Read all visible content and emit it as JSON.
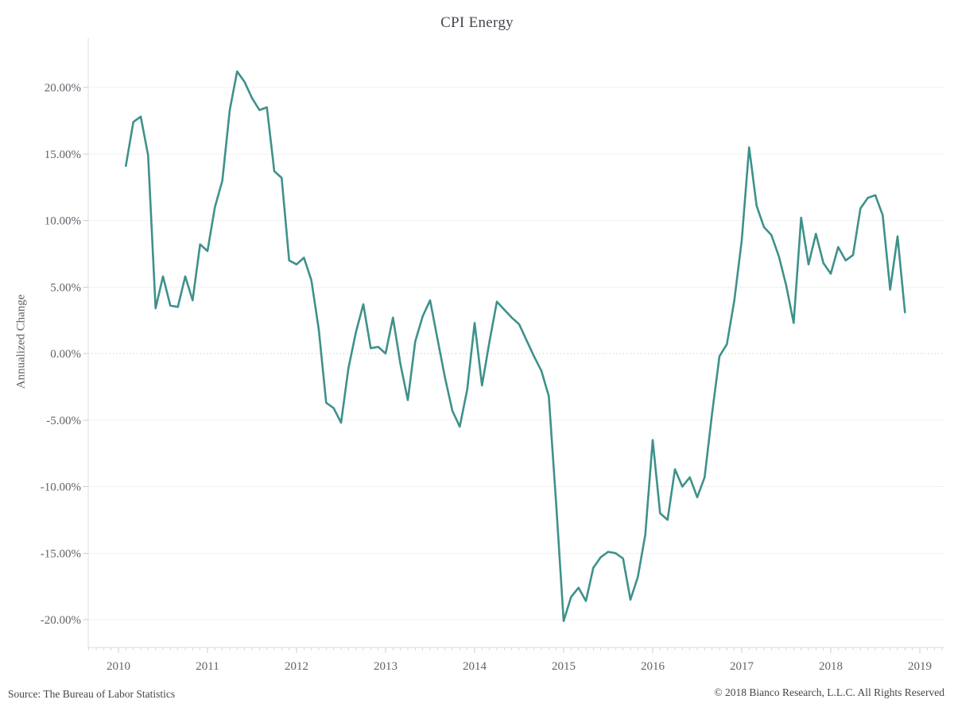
{
  "title": "CPI Energy",
  "footer": {
    "source": "Source: The Bureau of Labor Statistics",
    "copyright": "© 2018 Bianco Research, L.L.C. All Rights Reserved"
  },
  "chart_data": {
    "type": "line",
    "title": "CPI Energy",
    "xlabel": "",
    "ylabel": "Annualized Change",
    "ylim": [
      -22.5,
      23.5
    ],
    "grid": "horizontal, zero line dotted",
    "legend": "none",
    "colors": {
      "line": "#3E918B",
      "grid": "#f1f1ef",
      "zero_line": "#bdbdbd",
      "axis": "#dcdcdc",
      "tick": "#cccccc",
      "tick_text": "#62626b"
    },
    "y_ticks": [
      {
        "value": 20,
        "label": "20.00%"
      },
      {
        "value": 15,
        "label": "15.00%"
      },
      {
        "value": 10,
        "label": "10.00%"
      },
      {
        "value": 5,
        "label": "5.00%"
      },
      {
        "value": 0,
        "label": "0.00%"
      },
      {
        "value": -5,
        "label": "-5.00%"
      },
      {
        "value": -10,
        "label": "-10.00%"
      },
      {
        "value": -15,
        "label": "-15.00%"
      },
      {
        "value": -20,
        "label": "-20.00%"
      }
    ],
    "x_tick_labels": [
      "2010",
      "2011",
      "2012",
      "2013",
      "2014",
      "2015",
      "2016",
      "2017",
      "2018",
      "2019"
    ],
    "points": [
      [
        "2010-02",
        14.1
      ],
      [
        "2010-03",
        17.4
      ],
      [
        "2010-04",
        17.8
      ],
      [
        "2010-05",
        14.9
      ],
      [
        "2010-06",
        3.4
      ],
      [
        "2010-07",
        5.8
      ],
      [
        "2010-08",
        3.6
      ],
      [
        "2010-09",
        3.5
      ],
      [
        "2010-10",
        5.8
      ],
      [
        "2010-11",
        4.0
      ],
      [
        "2010-12",
        8.2
      ],
      [
        "2011-01",
        7.7
      ],
      [
        "2011-02",
        11.0
      ],
      [
        "2011-03",
        13.0
      ],
      [
        "2011-04",
        18.3
      ],
      [
        "2011-05",
        21.2
      ],
      [
        "2011-06",
        20.4
      ],
      [
        "2011-07",
        19.2
      ],
      [
        "2011-08",
        18.3
      ],
      [
        "2011-09",
        18.5
      ],
      [
        "2011-10",
        13.7
      ],
      [
        "2011-11",
        13.2
      ],
      [
        "2011-12",
        7.0
      ],
      [
        "2012-01",
        6.7
      ],
      [
        "2012-02",
        7.2
      ],
      [
        "2012-03",
        5.5
      ],
      [
        "2012-04",
        1.8
      ],
      [
        "2012-05",
        -3.7
      ],
      [
        "2012-06",
        -4.1
      ],
      [
        "2012-07",
        -5.2
      ],
      [
        "2012-08",
        -1.1
      ],
      [
        "2012-09",
        1.6
      ],
      [
        "2012-10",
        3.7
      ],
      [
        "2012-11",
        0.4
      ],
      [
        "2012-12",
        0.5
      ],
      [
        "2013-01",
        0.0
      ],
      [
        "2013-02",
        2.7
      ],
      [
        "2013-03",
        -0.8
      ],
      [
        "2013-04",
        -3.5
      ],
      [
        "2013-05",
        0.9
      ],
      [
        "2013-06",
        2.8
      ],
      [
        "2013-07",
        4.0
      ],
      [
        "2013-08",
        1.1
      ],
      [
        "2013-09",
        -1.8
      ],
      [
        "2013-10",
        -4.3
      ],
      [
        "2013-11",
        -5.5
      ],
      [
        "2013-12",
        -2.7
      ],
      [
        "2014-01",
        2.3
      ],
      [
        "2014-02",
        -2.4
      ],
      [
        "2014-03",
        0.9
      ],
      [
        "2014-04",
        3.9
      ],
      [
        "2014-05",
        3.3
      ],
      [
        "2014-06",
        2.7
      ],
      [
        "2014-07",
        2.2
      ],
      [
        "2014-08",
        1.0
      ],
      [
        "2014-09",
        -0.2
      ],
      [
        "2014-10",
        -1.3
      ],
      [
        "2014-11",
        -3.2
      ],
      [
        "2014-12",
        -11.4
      ],
      [
        "2015-01",
        -20.1
      ],
      [
        "2015-02",
        -18.3
      ],
      [
        "2015-03",
        -17.6
      ],
      [
        "2015-04",
        -18.6
      ],
      [
        "2015-05",
        -16.1
      ],
      [
        "2015-06",
        -15.3
      ],
      [
        "2015-07",
        -14.9
      ],
      [
        "2015-08",
        -15.0
      ],
      [
        "2015-09",
        -15.4
      ],
      [
        "2015-10",
        -18.5
      ],
      [
        "2015-11",
        -16.8
      ],
      [
        "2015-12",
        -13.6
      ],
      [
        "2016-01",
        -6.5
      ],
      [
        "2016-02",
        -12.0
      ],
      [
        "2016-03",
        -12.5
      ],
      [
        "2016-04",
        -8.7
      ],
      [
        "2016-05",
        -10.0
      ],
      [
        "2016-06",
        -9.3
      ],
      [
        "2016-07",
        -10.8
      ],
      [
        "2016-08",
        -9.3
      ],
      [
        "2016-09",
        -4.5
      ],
      [
        "2016-10",
        -0.2
      ],
      [
        "2016-11",
        0.7
      ],
      [
        "2016-12",
        4.0
      ],
      [
        "2017-01",
        8.5
      ],
      [
        "2017-02",
        15.5
      ],
      [
        "2017-03",
        11.1
      ],
      [
        "2017-04",
        9.5
      ],
      [
        "2017-05",
        8.9
      ],
      [
        "2017-06",
        7.3
      ],
      [
        "2017-07",
        5.1
      ],
      [
        "2017-08",
        2.3
      ],
      [
        "2017-09",
        10.2
      ],
      [
        "2017-10",
        6.7
      ],
      [
        "2017-11",
        9.0
      ],
      [
        "2017-12",
        6.8
      ],
      [
        "2018-01",
        6.0
      ],
      [
        "2018-02",
        8.0
      ],
      [
        "2018-03",
        7.0
      ],
      [
        "2018-04",
        7.4
      ],
      [
        "2018-05",
        10.9
      ],
      [
        "2018-06",
        11.7
      ],
      [
        "2018-07",
        11.9
      ],
      [
        "2018-08",
        10.4
      ],
      [
        "2018-09",
        4.8
      ],
      [
        "2018-10",
        8.8
      ],
      [
        "2018-11",
        3.1
      ]
    ]
  }
}
